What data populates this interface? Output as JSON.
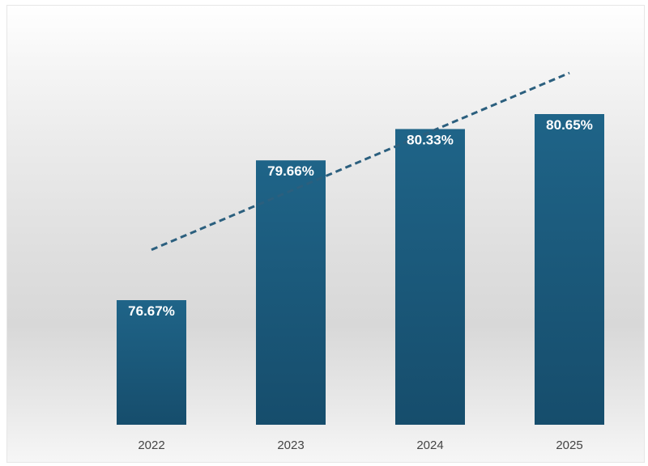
{
  "chart_data": {
    "type": "bar",
    "categories": [
      "2022",
      "2023",
      "2024",
      "2025"
    ],
    "values": [
      76.67,
      79.66,
      80.33,
      80.65
    ],
    "data_labels": [
      "76.67%",
      "79.66%",
      "80.33%",
      "80.65%"
    ],
    "trendline": {
      "type": "linear",
      "style": "dashed"
    },
    "grid": false,
    "legend": "none",
    "colors": {
      "bar_top": "#1f6488",
      "bar_bottom": "#164d6c",
      "trendline": "#2b5f7e",
      "label": "#ffffff",
      "tick": "#444444"
    }
  }
}
